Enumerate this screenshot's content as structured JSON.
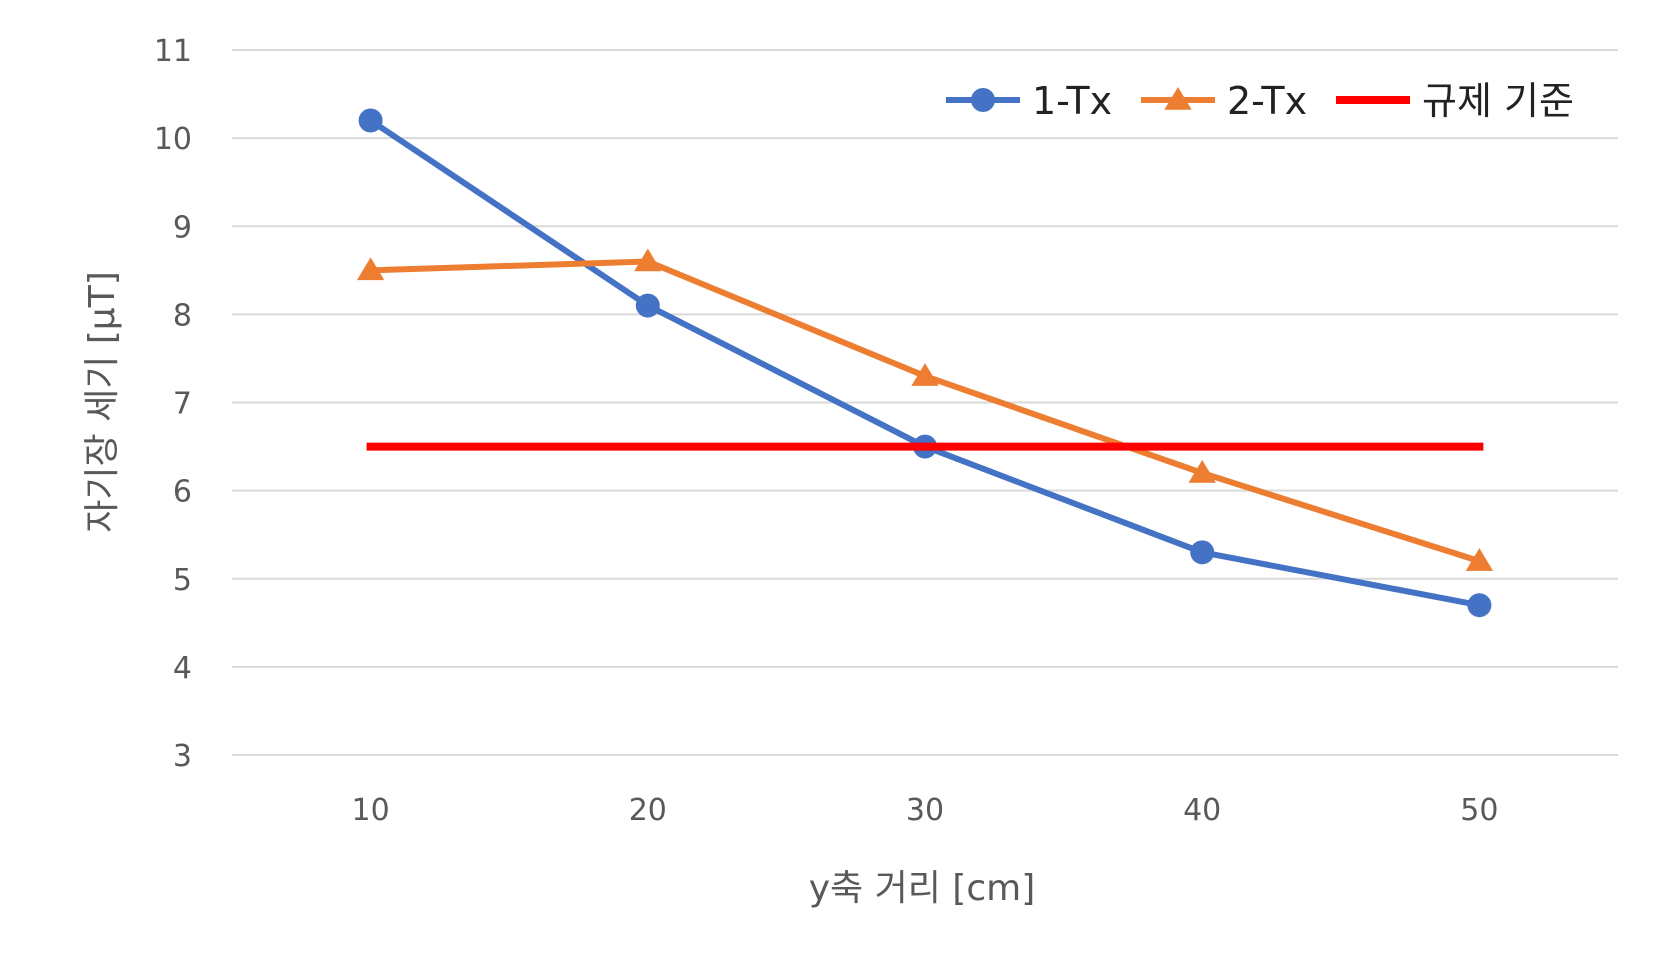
{
  "chart_data": {
    "type": "line",
    "title": "",
    "xlabel": "y축 거리 [cm]",
    "ylabel": "자기장 세기 [μT]",
    "x": [
      10,
      20,
      30,
      40,
      50
    ],
    "x_tick_labels": [
      "10",
      "20",
      "30",
      "40",
      "50"
    ],
    "ylim": [
      3,
      11
    ],
    "y_ticks": [
      3,
      4,
      5,
      6,
      7,
      8,
      9,
      10,
      11
    ],
    "grid": true,
    "legend_position": "top-right",
    "series": [
      {
        "name": "1-Tx",
        "values": [
          10.2,
          8.1,
          6.5,
          5.3,
          4.7
        ],
        "color": "#4472C4",
        "marker": "circle"
      },
      {
        "name": "2-Tx",
        "values": [
          8.5,
          8.6,
          7.3,
          6.2,
          5.2
        ],
        "color": "#ED7D31",
        "marker": "triangle"
      },
      {
        "name": "규제 기준",
        "values": [
          6.5,
          6.5,
          6.5,
          6.5,
          6.5
        ],
        "color": "#FF0000",
        "marker": "none"
      }
    ]
  }
}
